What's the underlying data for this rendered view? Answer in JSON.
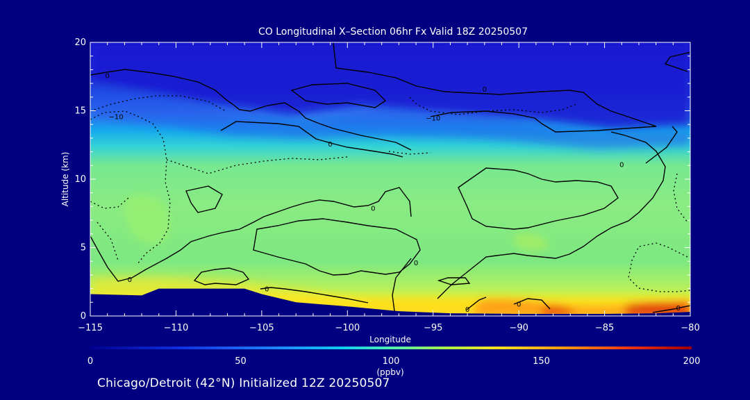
{
  "chart_data": {
    "type": "heatmap",
    "title": "CO Longitudinal X–Section 06hr  Fx Valid 18Z 20250507",
    "xlabel": "Longitude",
    "ylabel": "Altitude (km)",
    "xlim": [
      -115,
      -80
    ],
    "ylim": [
      0,
      20
    ],
    "xticks": [
      -115,
      -110,
      -105,
      -100,
      -95,
      -90,
      -85,
      -80
    ],
    "xtick_labels": [
      "−115",
      "−110",
      "−105",
      "−100",
      "−95",
      "−90",
      "−85",
      "−80"
    ],
    "yticks": [
      0,
      5,
      10,
      15,
      20
    ],
    "ytick_labels": [
      "0",
      "5",
      "10",
      "15",
      "20"
    ],
    "colorbar": {
      "label": "(ppbv)",
      "range": [
        0,
        200
      ],
      "ticks": [
        0,
        50,
        100,
        150,
        200
      ],
      "tick_labels": [
        "0",
        "50",
        "100",
        "150",
        "200"
      ],
      "colors": [
        "#1c1cd8",
        "#2f6df5",
        "#1fc8ee",
        "#4fe6b8",
        "#8cf080",
        "#d9f53a",
        "#ffe21e",
        "#ffa514",
        "#f2400a",
        "#b00000"
      ]
    },
    "vertical_profile_ppbv": [
      {
        "alt_km": 0.5,
        "co": 125
      },
      {
        "alt_km": 2,
        "co": 115
      },
      {
        "alt_km": 4,
        "co": 88
      },
      {
        "alt_km": 8,
        "co": 82
      },
      {
        "alt_km": 11,
        "co": 75
      },
      {
        "alt_km": 13,
        "co": 60
      },
      {
        "alt_km": 15,
        "co": 35
      },
      {
        "alt_km": 18,
        "co": 20
      },
      {
        "alt_km": 20,
        "co": 15
      }
    ],
    "surface_hotspot": {
      "lon_range": [
        -91,
        -80
      ],
      "co": 180
    },
    "contour_labels": [
      {
        "lon": -114,
        "alt": 17.6,
        "text": "0"
      },
      {
        "lon": -113.5,
        "alt": 14.6,
        "text": "−10"
      },
      {
        "lon": -92,
        "alt": 16.6,
        "text": "0"
      },
      {
        "lon": -95,
        "alt": 14.5,
        "text": "−10"
      },
      {
        "lon": -101,
        "alt": 12.6,
        "text": "0"
      },
      {
        "lon": -84,
        "alt": 11.1,
        "text": "0"
      },
      {
        "lon": -98.5,
        "alt": 7.9,
        "text": "0"
      },
      {
        "lon": -112.7,
        "alt": 2.7,
        "text": "0"
      },
      {
        "lon": -104.7,
        "alt": 2.0,
        "text": "0"
      },
      {
        "lon": -96,
        "alt": 3.9,
        "text": "0"
      },
      {
        "lon": -93,
        "alt": 0.5,
        "text": "0"
      },
      {
        "lon": -90,
        "alt": 0.9,
        "text": "0"
      },
      {
        "lon": -80.7,
        "alt": 0.6,
        "text": "0"
      }
    ],
    "terrain_km": [
      {
        "lon": -115,
        "alt": 1.6
      },
      {
        "lon": -112,
        "alt": 1.5
      },
      {
        "lon": -111,
        "alt": 2.0
      },
      {
        "lon": -106,
        "alt": 2.0
      },
      {
        "lon": -105,
        "alt": 1.6
      },
      {
        "lon": -103,
        "alt": 1.0
      },
      {
        "lon": -100,
        "alt": 0.7
      },
      {
        "lon": -97,
        "alt": 0.35
      },
      {
        "lon": -94,
        "alt": 0.2
      },
      {
        "lon": -90,
        "alt": 0.15
      },
      {
        "lon": -85,
        "alt": 0.15
      },
      {
        "lon": -82,
        "alt": 0.2
      },
      {
        "lon": -80,
        "alt": 0.3
      }
    ]
  },
  "footer": "Chicago/Detroit (42°N) Initialized 12Z 20250507"
}
